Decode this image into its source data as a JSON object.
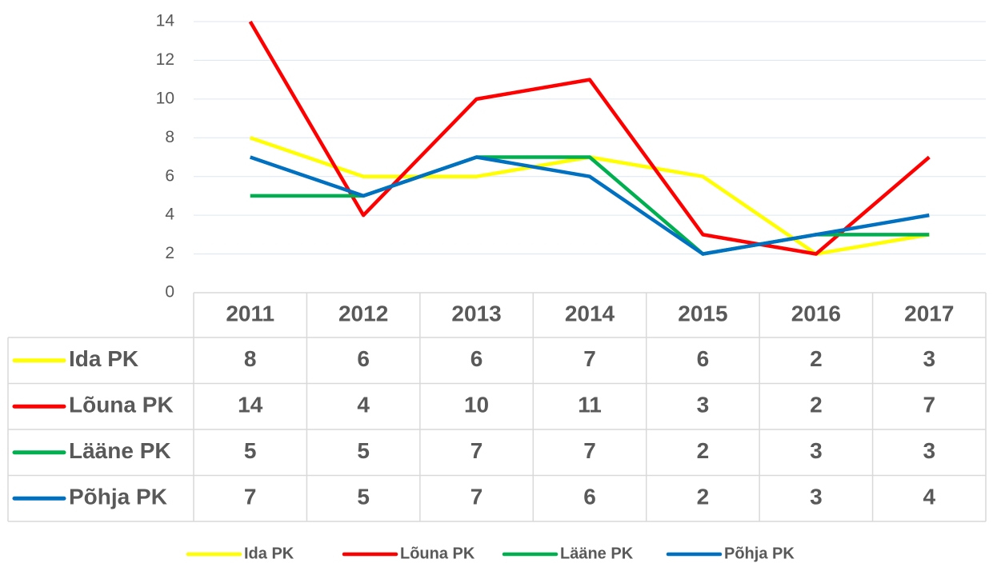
{
  "chart_data": {
    "type": "line",
    "categories": [
      "2011",
      "2012",
      "2013",
      "2014",
      "2015",
      "2016",
      "2017"
    ],
    "series": [
      {
        "name": "Ida PK",
        "color": "#ffff00",
        "values": [
          8,
          6,
          6,
          7,
          6,
          2,
          3
        ]
      },
      {
        "name": "Lõuna PK",
        "color": "#ff0000",
        "values": [
          14,
          4,
          10,
          11,
          3,
          2,
          7
        ]
      },
      {
        "name": "Lääne PK",
        "color": "#00b050",
        "values": [
          5,
          5,
          7,
          7,
          2,
          3,
          3
        ]
      },
      {
        "name": "Põhja PK",
        "color": "#0070c0",
        "values": [
          7,
          5,
          7,
          6,
          2,
          3,
          4
        ]
      }
    ],
    "ylim": [
      0,
      14
    ],
    "yticks": [
      0,
      2,
      4,
      6,
      8,
      10,
      12,
      14
    ],
    "grid": true
  }
}
